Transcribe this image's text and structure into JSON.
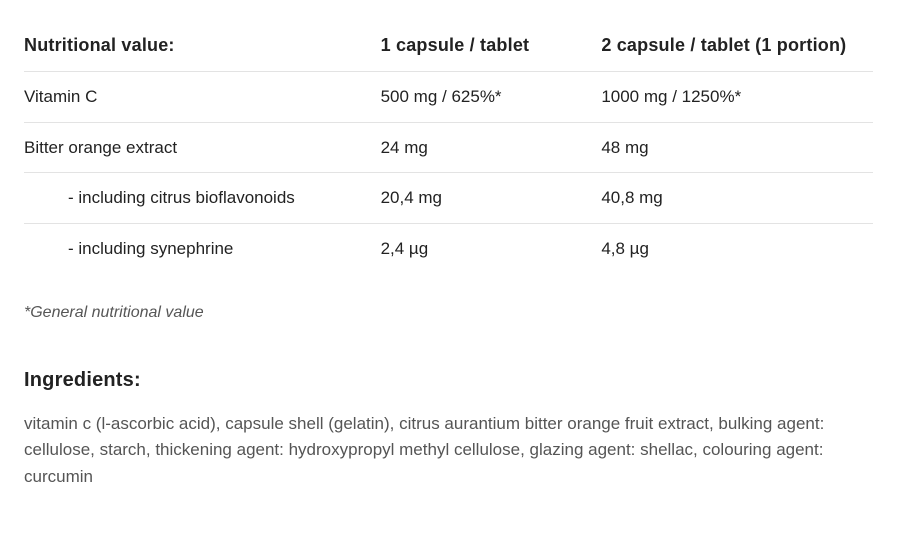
{
  "table": {
    "headers": {
      "col1": "Nutritional value:",
      "col2": "1 capsule / tablet",
      "col3": "2 capsule / tablet (1 portion)"
    },
    "rows": [
      {
        "label": "Vitamin C",
        "col2": "500 mg / 625%*",
        "col3": "1000 mg / 1250%*",
        "indent": false
      },
      {
        "label": "Bitter orange extract",
        "col2": "24 mg",
        "col3": "48 mg",
        "indent": false
      },
      {
        "label": "- including citrus bioflavonoids",
        "col2": "20,4 mg",
        "col3": "40,8 mg",
        "indent": true
      },
      {
        "label": "- including synephrine",
        "col2": "2,4 µg",
        "col3": "4,8 µg",
        "indent": true
      }
    ],
    "border_color": "#e3e3e3",
    "header_fontsize": 18,
    "cell_fontsize": 17
  },
  "footnote": "*General nutritional value",
  "ingredients": {
    "heading": "Ingredients:",
    "body": "vitamin c (l-ascorbic acid), capsule shell (gelatin), citrus aurantium bitter orange fruit extract, bulking agent: cellulose, starch, thickening agent: hydroxypropyl methyl cellulose, glazing agent: shellac, colouring agent: curcumin"
  },
  "colors": {
    "background": "#ffffff",
    "text_primary": "#222222",
    "text_secondary": "#555555",
    "footnote_color": "#565656"
  }
}
